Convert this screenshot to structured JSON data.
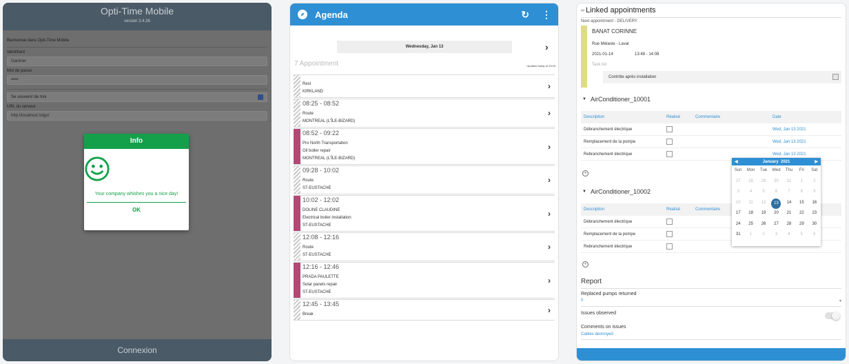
{
  "login": {
    "app_title": "Opti-Time Mobile",
    "version": "version 3.4.26",
    "welcome": "Bienvenue dans Opti-Time Mobile",
    "id_label": "Identifiant",
    "id_value": "Gardner",
    "pwd_label": "Mot de passe",
    "pwd_value": "•••••",
    "remember_label": "Se souvenir de moi",
    "url_label": "URL du serveur",
    "url_value": "http://localhost:/otgo/",
    "connect_label": "Connexion",
    "dialog": {
      "title": "Info",
      "message": "Your company whishes you a nice day!",
      "ok": "OK"
    }
  },
  "agenda": {
    "title": "Agenda",
    "date": "Wednesday, Jan 13",
    "count": "7 Appointment",
    "updated": "Updated today at 13:09",
    "items": [
      {
        "time": "",
        "l1": "Rest",
        "l2": "KIRKLAND",
        "l3": "",
        "solid": false
      },
      {
        "time": "08:25 - 08:52",
        "l1": "Route",
        "l2": "MONTREAL (L'ÎLE-BIZARD)",
        "l3": "",
        "solid": false
      },
      {
        "time": "08:52 - 09:22",
        "l1": "Pro North Transportation",
        "l2": "Oil boiler repair",
        "l3": "MONTREAL (L'ÎLE-BIZARD)",
        "solid": true
      },
      {
        "time": "09:28 - 10:02",
        "l1": "Route",
        "l2": "ST-EUSTACHE",
        "l3": "",
        "solid": false
      },
      {
        "time": "10:02 - 12:02",
        "l1": "DOLINE CLAUDINE",
        "l2": "Electrical boiler installation",
        "l3": "ST-EUSTACHE",
        "solid": true
      },
      {
        "time": "12:08 - 12:16",
        "l1": "Route",
        "l2": "ST-EUSTACHE",
        "l3": "",
        "solid": false
      },
      {
        "time": "12:16 - 12:46",
        "l1": "PRADA PAULETTE",
        "l2": "Solar panels repair",
        "l3": "ST-EUSTACHE",
        "solid": true
      },
      {
        "time": "12:45 - 13:45",
        "l1": "Break",
        "l2": "",
        "l3": "",
        "solid": false
      }
    ]
  },
  "detail": {
    "linked_title": "Linked appointments",
    "next_label": "Next appointment - DELIVERY",
    "name": "BANAT CORINNE",
    "street": "Rue Mélanie - Laval",
    "date": "2021-01-14",
    "time": "13:48 - 14:08",
    "task_list": "Task list",
    "task": "Contrôle après installation",
    "units": [
      {
        "title": "AirConditioner_10001",
        "rows": [
          "Débranchement électrique",
          "Remplacement de la pompe",
          "Rebranchement électrique"
        ]
      },
      {
        "title": "AirConditioner_10002",
        "rows": [
          "Débranchement électrique",
          "Remplacement de la pompe",
          "Rebranchement électrique"
        ]
      }
    ],
    "headers": {
      "desc": "Description",
      "done": "Réalisé",
      "comment": "Commentaire",
      "date": "Date"
    },
    "row_date": "Wed, Jan 13 2021",
    "calendar": {
      "month": "January",
      "year": "2021",
      "days": [
        "Sun",
        "Mon",
        "Tue",
        "Wed",
        "Thu",
        "Fri",
        "Sat"
      ],
      "cells": [
        "27",
        "28",
        "29",
        "30",
        "31",
        "1",
        "2",
        "3",
        "4",
        "5",
        "6",
        "7",
        "8",
        "9",
        "10",
        "11",
        "12",
        "13",
        "14",
        "15",
        "16",
        "17",
        "18",
        "19",
        "20",
        "21",
        "22",
        "23",
        "24",
        "25",
        "26",
        "27",
        "28",
        "29",
        "30",
        "31",
        "1",
        "2",
        "3",
        "4",
        "5",
        "6"
      ]
    },
    "report_title": "Report",
    "pumps_label": "Replaced pumps returned",
    "pumps_value": "0",
    "issues_label": "Issues observed",
    "comments_label": "Comments on issues",
    "comments_value": "Cables destroyed"
  }
}
